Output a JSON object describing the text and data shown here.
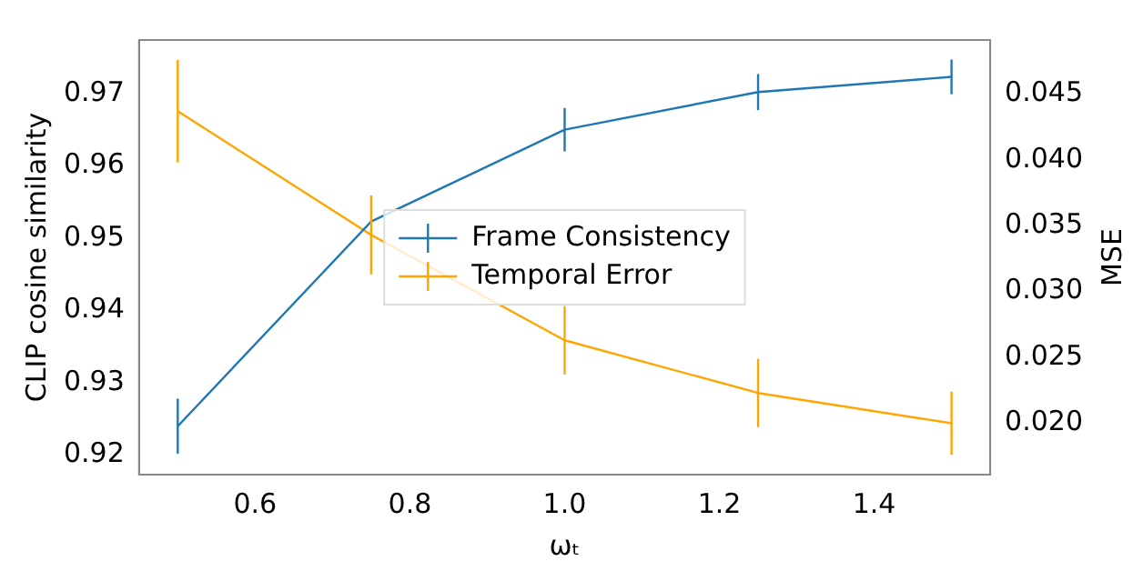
{
  "chart_data": {
    "type": "line",
    "xlabel": "ωₜ",
    "ylabel": "CLIP cosine similarity",
    "y2label": "MSE",
    "x": [
      0.5,
      0.75,
      1.0,
      1.25,
      1.5
    ],
    "series": [
      {
        "name": "Frame Consistency",
        "color": "#1f77b4",
        "values": [
          0.924,
          0.9523,
          0.965,
          0.9702,
          0.9723
        ],
        "errors": [
          0.0038,
          null,
          0.003,
          0.0025,
          0.0024
        ]
      },
      {
        "name": "Temporal Error",
        "color": "#ffa500",
        "axis": "y2",
        "values": [
          0.0437,
          0.0343,
          0.0263,
          0.0223,
          0.02
        ],
        "errors": [
          0.0039,
          0.003,
          0.0026,
          0.0026,
          0.0024
        ]
      }
    ],
    "xlim": [
      0.45,
      1.55
    ],
    "xticks": [
      {
        "value": 0.6,
        "label": "0.6"
      },
      {
        "value": 0.8,
        "label": "0.8"
      },
      {
        "value": 1.0,
        "label": "1.0"
      },
      {
        "value": 1.2,
        "label": "1.2"
      },
      {
        "value": 1.4,
        "label": "1.4"
      }
    ],
    "ylim": [
      0.9173,
      0.9774
    ],
    "yticks": [
      {
        "value": 0.92,
        "label": "0.92"
      },
      {
        "value": 0.93,
        "label": "0.93"
      },
      {
        "value": 0.94,
        "label": "0.94"
      },
      {
        "value": 0.95,
        "label": "0.95"
      },
      {
        "value": 0.96,
        "label": "0.96"
      },
      {
        "value": 0.97,
        "label": "0.97"
      }
    ],
    "y2lim": [
      0.0161,
      0.0491
    ],
    "y2ticks": [
      {
        "value": 0.02,
        "label": "0.020"
      },
      {
        "value": 0.025,
        "label": "0.025"
      },
      {
        "value": 0.03,
        "label": "0.030"
      },
      {
        "value": 0.035,
        "label": "0.035"
      },
      {
        "value": 0.04,
        "label": "0.040"
      },
      {
        "value": 0.045,
        "label": "0.045"
      }
    ],
    "grid": false,
    "legend": "center",
    "marker": "none",
    "line_style": "solid"
  }
}
